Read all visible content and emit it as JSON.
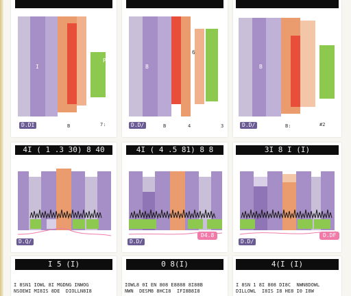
{
  "colors": {
    "purple_light": "#c9bfd9",
    "purple": "#a58fc6",
    "purple_dark": "#8f75b6",
    "orange": "#ea9c6f",
    "red": "#e84f3a",
    "green": "#8dc84f",
    "pink": "#f07aa8",
    "header_bg": "#0d0d0d"
  },
  "row1": [
    {
      "header": "",
      "badge": "D.DI",
      "ticks": [
        "B",
        "7:"
      ],
      "bar_label": "I",
      "bar_label2": "P"
    },
    {
      "header": "",
      "badge": "D.D/",
      "ticks": [
        "B",
        "4",
        "3"
      ],
      "bar_label": "B",
      "bar_label2": "6"
    },
    {
      "header": "",
      "badge": "D.D/",
      "ticks": [
        "B:",
        "#2"
      ],
      "bar_label": "B",
      "bar_label2": ""
    }
  ],
  "row2": [
    {
      "header": "4I  ( 1 .3 30)  8 40",
      "badge": "D.Q/",
      "pink": ""
    },
    {
      "header": "4I  ( 4 .5 81)  8 8",
      "badge": "D.D/",
      "pink": "D4.8"
    },
    {
      "header": "3I    8 I (I)",
      "badge": "D.D/",
      "pink": "D.DF"
    }
  ],
  "row3": [
    {
      "header": "I 5 (I)",
      "text": "I 8SN1 IOWL 8I MGDNG INWOG\nNSOEWI MI8IS 8DE  DIOLLN8I8"
    },
    {
      "header": "0 8(I)",
      "text": "IOWL8 0I EN 808 E8888 8I88B\nNWN  DESM8 8HCI8  IFI8B8I8"
    },
    {
      "header": "4(I (I)",
      "text": "I 8SN 1 8I 808 DI8C  NWN8DOWL\nDILLOWL  I8IS I8 HE8 I0 I8W"
    }
  ]
}
